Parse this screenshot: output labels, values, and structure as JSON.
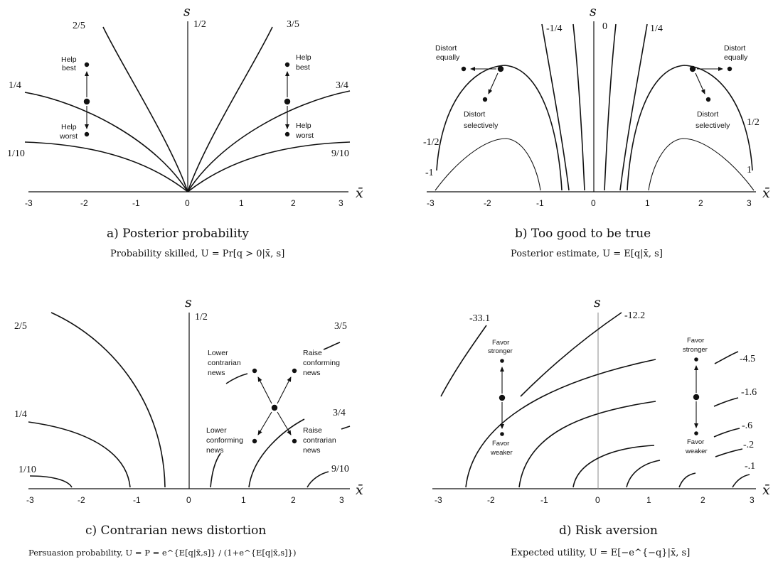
{
  "panels": {
    "a": {
      "title": "a) Posterior probability",
      "subtitle": "Probability skilled, U = Pr[q > 0|x̄, s]",
      "y_axis_name": "s",
      "x_axis_name": "x̄",
      "x_ticks": [
        "-3",
        "-2",
        "-1",
        "0",
        "1",
        "2",
        "3"
      ],
      "contour_labels": [
        "1/2",
        "2/5",
        "3/5",
        "1/4",
        "3/4",
        "1/10",
        "9/10"
      ],
      "annotations": {
        "left_top": [
          "Help",
          "best"
        ],
        "left_bottom": [
          "Help",
          "worst"
        ],
        "right_top": [
          "Help",
          "best"
        ],
        "right_bottom": [
          "Help",
          "worst"
        ]
      }
    },
    "b": {
      "title": "b) Too good to be true",
      "subtitle": "Posterior estimate, U = E[q|x̄, s]",
      "y_axis_name": "s",
      "x_axis_name": "x̄",
      "x_ticks": [
        "-3",
        "-2",
        "-1",
        "0",
        "1",
        "2",
        "3"
      ],
      "contour_labels": [
        "-1/4",
        "0",
        "1/4",
        "-1/2",
        "1/2",
        "-1",
        "1"
      ],
      "annotations": {
        "left_equal": [
          "Distort",
          "equally"
        ],
        "left_selective": [
          "Distort",
          "selectively"
        ],
        "right_equal": [
          "Distort",
          "equally"
        ],
        "right_selective": [
          "Distort",
          "selectively"
        ]
      }
    },
    "c": {
      "title": "c) Contrarian news distortion",
      "subtitle": "Persuasion probability, U = P = e^{E[q|x̄,s]} / (1+e^{E[q|x̄,s]})",
      "y_axis_name": "s",
      "x_axis_name": "x̄",
      "x_ticks": [
        "-3",
        "-2",
        "-1",
        "0",
        "1",
        "2",
        "3"
      ],
      "contour_labels": [
        "1/2",
        "2/5",
        "3/5",
        "1/4",
        "3/4",
        "1/10",
        "9/10"
      ],
      "annotations": {
        "upper_left": [
          "Lower",
          "contrarian",
          "news"
        ],
        "upper_right": [
          "Raise",
          "conforming",
          "news"
        ],
        "lower_left": [
          "Lower",
          "conforming",
          "news"
        ],
        "lower_right": [
          "Raise",
          "contrarian",
          "news"
        ]
      }
    },
    "d": {
      "title": "d) Risk aversion",
      "subtitle": "Expected utility, U = E[−e^{−q}|x̄, s]",
      "y_axis_name": "s",
      "x_axis_name": "x̄",
      "x_ticks": [
        "-3",
        "-2",
        "-1",
        "0",
        "1",
        "2",
        "3"
      ],
      "contour_labels": [
        "-33.1",
        "-12.2",
        "-4.5",
        "-1.6",
        "-.6",
        "-.2",
        "-.1"
      ],
      "annotations": {
        "left_top": [
          "Favor",
          "stronger"
        ],
        "left_bottom": [
          "Favor",
          "weaker"
        ],
        "right_top": [
          "Favor",
          "stronger"
        ],
        "right_bottom": [
          "Favor",
          "weaker"
        ]
      }
    }
  }
}
